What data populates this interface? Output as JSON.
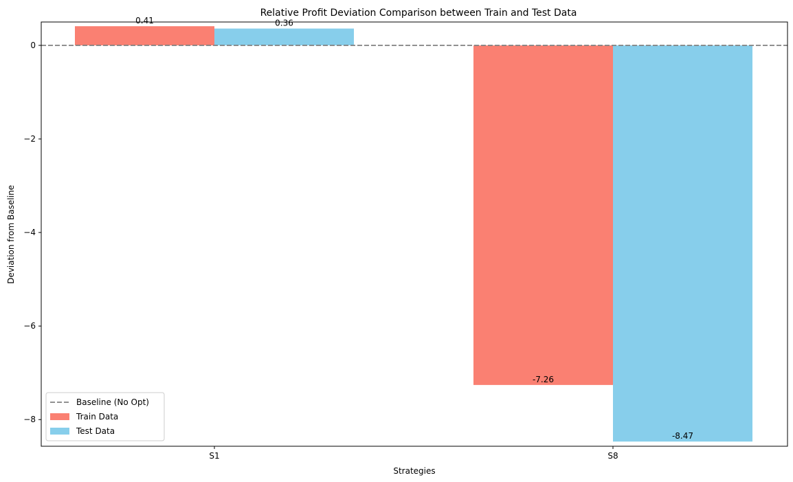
{
  "chart_data": {
    "type": "bar",
    "title": "Relative Profit Deviation Comparison between Train and Test Data",
    "xlabel": "Strategies",
    "ylabel": "Deviation from Baseline",
    "categories": [
      "S1",
      "S8"
    ],
    "series": [
      {
        "name": "Train Data",
        "values": [
          0.41,
          -7.26
        ],
        "labels": [
          "0.41",
          "-7.26"
        ],
        "color": "#fa8072"
      },
      {
        "name": "Test Data",
        "values": [
          0.36,
          -8.47
        ],
        "labels": [
          "0.36",
          "-8.47"
        ],
        "color": "#87ceeb"
      }
    ],
    "baseline": {
      "name": "Baseline (No Opt)",
      "value": 0,
      "color": "#808080",
      "style": "dashed"
    },
    "ylim": [
      -8.57,
      0.5
    ],
    "yticks": [
      0,
      -2,
      -4,
      -6,
      -8
    ],
    "ytick_labels": [
      "0",
      "−2",
      "−4",
      "−6",
      "−8"
    ],
    "legend_position": "lower-left",
    "grid": false
  }
}
